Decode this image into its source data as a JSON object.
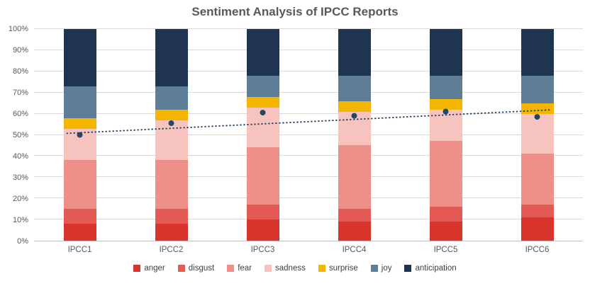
{
  "title": "Sentiment Analysis of IPCC Reports",
  "chart_data": {
    "type": "bar",
    "stacked": true,
    "title": "Sentiment Analysis of IPCC Reports",
    "categories": [
      "IPCC1",
      "IPCC2",
      "IPCC3",
      "IPCC4",
      "IPCC5",
      "IPCC6"
    ],
    "series": [
      {
        "name": "anger",
        "color": "#D8342B",
        "values": [
          8,
          8,
          10,
          9,
          9,
          11
        ]
      },
      {
        "name": "disgust",
        "color": "#E35953",
        "values": [
          7,
          7,
          7,
          6,
          7,
          6
        ]
      },
      {
        "name": "fear",
        "color": "#EE8F89",
        "values": [
          23,
          23,
          27,
          30,
          31,
          24
        ]
      },
      {
        "name": "sadness",
        "color": "#F6C3BF",
        "values": [
          15,
          19,
          19,
          16,
          15,
          19
        ]
      },
      {
        "name": "surprise",
        "color": "#F3B500",
        "values": [
          5,
          5,
          5,
          5,
          5,
          5
        ]
      },
      {
        "name": "joy",
        "color": "#5E7D97",
        "values": [
          15,
          11,
          10,
          12,
          11,
          13
        ]
      },
      {
        "name": "anticipation",
        "color": "#1E3451",
        "values": [
          27,
          27,
          22,
          22,
          22,
          22
        ]
      }
    ],
    "trend_points": {
      "name": "trend-dots",
      "color": "#254664",
      "values": [
        50,
        55.5,
        60.5,
        59,
        61,
        58.5
      ]
    },
    "trendline": {
      "color": "#254664",
      "start_value": 51,
      "end_value": 61.5,
      "style": "dotted"
    },
    "ylim": [
      0,
      100
    ],
    "yticks": [
      "0%",
      "10%",
      "20%",
      "30%",
      "40%",
      "50%",
      "60%",
      "70%",
      "80%",
      "90%",
      "100%"
    ],
    "grid": true,
    "legend_position": "bottom",
    "legend": [
      "anger",
      "disgust",
      "fear",
      "sadness",
      "surprise",
      "joy",
      "anticipation"
    ]
  },
  "colors": {
    "title_text": "#595959",
    "axis_text": "#595959",
    "gridline": "#DADADA",
    "axis_line": "#BFBFBF",
    "background": "#FFFFFF"
  }
}
